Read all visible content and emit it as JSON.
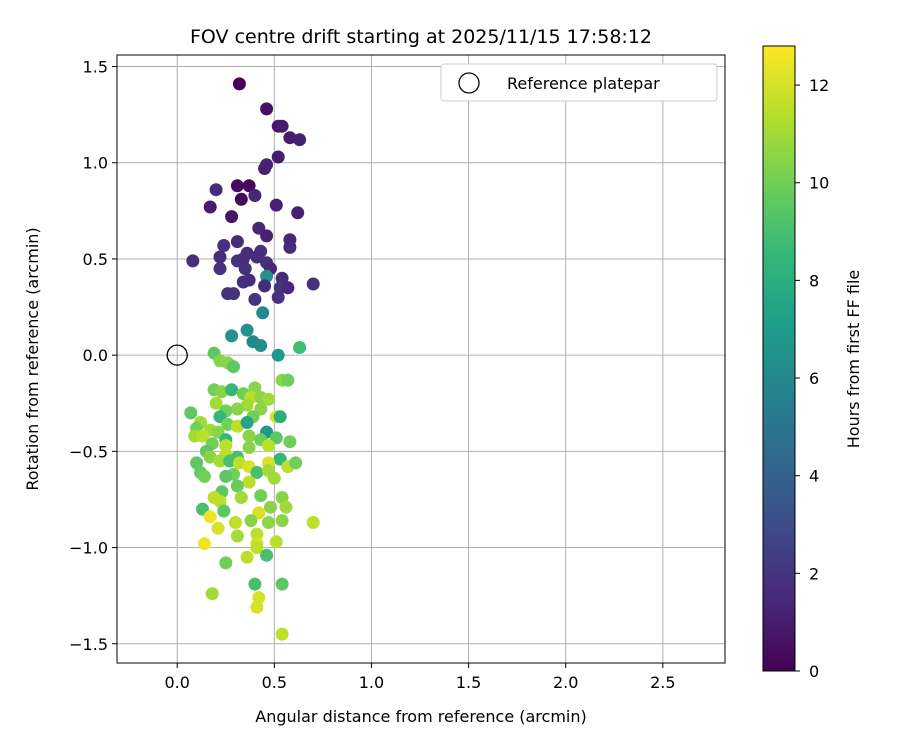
{
  "chart_data": {
    "type": "scatter",
    "title": "FOV centre drift starting at 2025/11/15 17:58:12",
    "xlabel": "Angular distance from reference (arcmin)",
    "ylabel": "Rotation from reference (arcmin)",
    "xlim": [
      -0.31,
      2.82
    ],
    "ylim": [
      -1.6,
      1.56
    ],
    "x_ticks": [
      0.0,
      0.5,
      1.0,
      1.5,
      2.0,
      2.5
    ],
    "x_tick_labels": [
      "0.0",
      "0.5",
      "1.0",
      "1.5",
      "2.0",
      "2.5"
    ],
    "y_ticks": [
      1.5,
      1.0,
      0.5,
      0.0,
      -0.5,
      -1.0,
      -1.5
    ],
    "y_tick_labels": [
      "1.5",
      "1.0",
      "0.5",
      "0.0",
      "−0.5",
      "−1.0",
      "−1.5"
    ],
    "grid": true,
    "legend": {
      "position": "top-right",
      "entries": [
        "Reference platepar"
      ]
    },
    "reference_point": {
      "x": 0.0,
      "y": 0.0,
      "label": "Reference platepar"
    },
    "colorbar": {
      "label": "Hours from first FF file",
      "range": [
        0,
        12.8
      ],
      "ticks": [
        0,
        2,
        4,
        6,
        8,
        10,
        12
      ],
      "tick_labels": [
        "0",
        "2",
        "4",
        "6",
        "8",
        "10",
        "12"
      ],
      "colormap": [
        "#440154",
        "#482878",
        "#3e4989",
        "#31688e",
        "#26828e",
        "#1f9e89",
        "#35b779",
        "#6ece58",
        "#b5de2b",
        "#fde725"
      ]
    },
    "points": [
      [
        0.32,
        1.41,
        0.2
      ],
      [
        0.46,
        1.28,
        0.6
      ],
      [
        0.52,
        1.19,
        0.8
      ],
      [
        0.54,
        1.19,
        0.9
      ],
      [
        0.58,
        1.13,
        1.0
      ],
      [
        0.63,
        1.12,
        1.1
      ],
      [
        0.52,
        1.03,
        1.0
      ],
      [
        0.46,
        0.99,
        1.3
      ],
      [
        0.45,
        0.97,
        1.2
      ],
      [
        0.31,
        0.88,
        0.4
      ],
      [
        0.37,
        0.88,
        0.3
      ],
      [
        0.2,
        0.86,
        1.6
      ],
      [
        0.4,
        0.83,
        1.4
      ],
      [
        0.33,
        0.81,
        0.3
      ],
      [
        0.17,
        0.77,
        1.0
      ],
      [
        0.51,
        0.78,
        1.2
      ],
      [
        0.62,
        0.74,
        1.1
      ],
      [
        0.28,
        0.72,
        0.8
      ],
      [
        0.42,
        0.66,
        1.4
      ],
      [
        0.46,
        0.62,
        1.2
      ],
      [
        0.31,
        0.59,
        1.6
      ],
      [
        0.58,
        0.6,
        1.4
      ],
      [
        0.58,
        0.56,
        1.5
      ],
      [
        0.24,
        0.57,
        1.8
      ],
      [
        0.36,
        0.53,
        1.6
      ],
      [
        0.43,
        0.54,
        1.8
      ],
      [
        0.22,
        0.51,
        1.6
      ],
      [
        0.31,
        0.49,
        1.9
      ],
      [
        0.34,
        0.5,
        1.7
      ],
      [
        0.41,
        0.51,
        1.7
      ],
      [
        0.46,
        0.48,
        1.9
      ],
      [
        0.08,
        0.49,
        1.7
      ],
      [
        0.22,
        0.45,
        1.8
      ],
      [
        0.35,
        0.45,
        1.8
      ],
      [
        0.48,
        0.45,
        1.4
      ],
      [
        0.46,
        0.41,
        6.5
      ],
      [
        0.54,
        0.4,
        1.6
      ],
      [
        0.34,
        0.38,
        1.7
      ],
      [
        0.37,
        0.39,
        1.6
      ],
      [
        0.45,
        0.36,
        1.6
      ],
      [
        0.53,
        0.35,
        2.0
      ],
      [
        0.57,
        0.35,
        1.5
      ],
      [
        0.7,
        0.37,
        1.8
      ],
      [
        0.26,
        0.32,
        1.9
      ],
      [
        0.29,
        0.32,
        1.9
      ],
      [
        0.4,
        0.29,
        1.9
      ],
      [
        0.52,
        0.3,
        1.8
      ],
      [
        0.44,
        0.22,
        6.0
      ],
      [
        0.36,
        0.13,
        6.5
      ],
      [
        0.28,
        0.1,
        6.5
      ],
      [
        0.39,
        0.07,
        6.0
      ],
      [
        0.43,
        0.05,
        6.3
      ],
      [
        0.52,
        0.0,
        6.8
      ],
      [
        0.63,
        0.04,
        8.8
      ],
      [
        0.19,
        0.01,
        9.5
      ],
      [
        0.22,
        -0.03,
        10.5
      ],
      [
        0.26,
        -0.04,
        10.5
      ],
      [
        0.29,
        -0.06,
        9.5
      ],
      [
        0.54,
        -0.13,
        10.5
      ],
      [
        0.57,
        -0.13,
        10.0
      ],
      [
        0.19,
        -0.18,
        10.0
      ],
      [
        0.23,
        -0.19,
        10.5
      ],
      [
        0.28,
        -0.18,
        8.5
      ],
      [
        0.4,
        -0.17,
        10.5
      ],
      [
        0.34,
        -0.2,
        10.0
      ],
      [
        0.38,
        -0.22,
        11.5
      ],
      [
        0.43,
        -0.22,
        10.5
      ],
      [
        0.47,
        -0.23,
        11.0
      ],
      [
        0.2,
        -0.25,
        11.0
      ],
      [
        0.36,
        -0.26,
        11.0
      ],
      [
        0.31,
        -0.28,
        10.5
      ],
      [
        0.25,
        -0.29,
        10.0
      ],
      [
        0.43,
        -0.28,
        10.5
      ],
      [
        0.07,
        -0.3,
        9.5
      ],
      [
        0.22,
        -0.32,
        8.5
      ],
      [
        0.39,
        -0.32,
        10.0
      ],
      [
        0.51,
        -0.32,
        12.0
      ],
      [
        0.53,
        -0.32,
        8.0
      ],
      [
        0.12,
        -0.35,
        11.0
      ],
      [
        0.26,
        -0.36,
        10.0
      ],
      [
        0.31,
        -0.37,
        11.5
      ],
      [
        0.36,
        -0.35,
        7.5
      ],
      [
        0.1,
        -0.38,
        10.0
      ],
      [
        0.17,
        -0.39,
        11.0
      ],
      [
        0.21,
        -0.4,
        10.5
      ],
      [
        0.46,
        -0.4,
        6.8
      ],
      [
        0.09,
        -0.42,
        11.0
      ],
      [
        0.13,
        -0.42,
        11.5
      ],
      [
        0.25,
        -0.44,
        8.5
      ],
      [
        0.37,
        -0.42,
        10.5
      ],
      [
        0.43,
        -0.44,
        10.0
      ],
      [
        0.51,
        -0.43,
        9.5
      ],
      [
        0.58,
        -0.45,
        10.0
      ],
      [
        0.18,
        -0.46,
        10.0
      ],
      [
        0.25,
        -0.47,
        11.5
      ],
      [
        0.37,
        -0.48,
        10.5
      ],
      [
        0.47,
        -0.47,
        11.5
      ],
      [
        0.15,
        -0.5,
        9.5
      ],
      [
        0.17,
        -0.53,
        10.5
      ],
      [
        0.25,
        -0.52,
        11.5
      ],
      [
        0.31,
        -0.53,
        9.0
      ],
      [
        0.53,
        -0.54,
        8.5
      ],
      [
        0.1,
        -0.56,
        9.5
      ],
      [
        0.22,
        -0.55,
        11.0
      ],
      [
        0.27,
        -0.55,
        9.0
      ],
      [
        0.32,
        -0.56,
        11.5
      ],
      [
        0.47,
        -0.56,
        12.0
      ],
      [
        0.37,
        -0.58,
        12.0
      ],
      [
        0.57,
        -0.58,
        11.5
      ],
      [
        0.61,
        -0.56,
        10.0
      ],
      [
        0.12,
        -0.61,
        9.8
      ],
      [
        0.29,
        -0.62,
        10.0
      ],
      [
        0.41,
        -0.61,
        9.0
      ],
      [
        0.47,
        -0.6,
        11.0
      ],
      [
        0.25,
        -0.63,
        9.5
      ],
      [
        0.14,
        -0.63,
        10.0
      ],
      [
        0.5,
        -0.64,
        11.0
      ],
      [
        0.37,
        -0.66,
        11.5
      ],
      [
        0.31,
        -0.68,
        9.8
      ],
      [
        0.23,
        -0.71,
        9.5
      ],
      [
        0.19,
        -0.74,
        11.5
      ],
      [
        0.33,
        -0.74,
        11.0
      ],
      [
        0.43,
        -0.73,
        10.0
      ],
      [
        0.54,
        -0.74,
        10.5
      ],
      [
        0.22,
        -0.76,
        11.5
      ],
      [
        0.48,
        -0.79,
        10.5
      ],
      [
        0.56,
        -0.79,
        11.0
      ],
      [
        0.13,
        -0.8,
        9.0
      ],
      [
        0.24,
        -0.81,
        9.5
      ],
      [
        0.42,
        -0.82,
        12.0
      ],
      [
        0.17,
        -0.84,
        12.5
      ],
      [
        0.3,
        -0.87,
        11.5
      ],
      [
        0.38,
        -0.86,
        10.5
      ],
      [
        0.47,
        -0.87,
        10.5
      ],
      [
        0.54,
        -0.86,
        10.5
      ],
      [
        0.7,
        -0.87,
        11.5
      ],
      [
        0.21,
        -0.9,
        12.0
      ],
      [
        0.31,
        -0.94,
        11.0
      ],
      [
        0.41,
        -0.93,
        11.5
      ],
      [
        0.51,
        -0.97,
        11.5
      ],
      [
        0.41,
        -0.98,
        12.0
      ],
      [
        0.14,
        -0.98,
        12.5
      ],
      [
        0.41,
        -1.0,
        11.5
      ],
      [
        0.36,
        -1.05,
        11.5
      ],
      [
        0.46,
        -1.04,
        9.0
      ],
      [
        0.25,
        -1.08,
        10.0
      ],
      [
        0.4,
        -1.19,
        9.0
      ],
      [
        0.54,
        -1.19,
        9.5
      ],
      [
        0.18,
        -1.24,
        11.0
      ],
      [
        0.42,
        -1.26,
        12.0
      ],
      [
        0.41,
        -1.31,
        12.0
      ],
      [
        0.54,
        -1.45,
        11.5
      ]
    ]
  }
}
